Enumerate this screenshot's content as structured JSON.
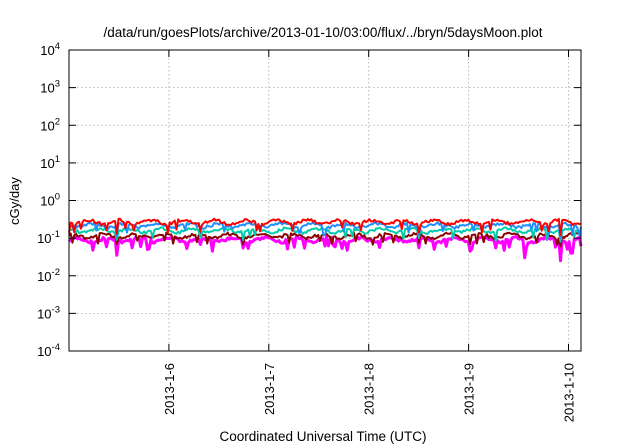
{
  "chart_data": {
    "type": "line",
    "title": "/data/run/goesPlots/archive/2013-01-10/03:00/flux/../bryn/5daysMoon.plot",
    "xlabel": "Coordinated Universal Time (UTC)",
    "ylabel": "cGy/day",
    "y_scale": "log",
    "ylim": [
      0.0001,
      10000
    ],
    "xlim": [
      "2013-01-05 00:00",
      "2013-01-10 03:00"
    ],
    "y_ticks": [
      {
        "base": "10",
        "exp": "-4",
        "value": 0.0001
      },
      {
        "base": "10",
        "exp": "-3",
        "value": 0.001
      },
      {
        "base": "10",
        "exp": "-2",
        "value": 0.01
      },
      {
        "base": "10",
        "exp": "-1",
        "value": 0.1
      },
      {
        "base": "10",
        "exp": "0",
        "value": 1
      },
      {
        "base": "10",
        "exp": "1",
        "value": 10
      },
      {
        "base": "10",
        "exp": "2",
        "value": 100
      },
      {
        "base": "10",
        "exp": "3",
        "value": 1000
      },
      {
        "base": "10",
        "exp": "4",
        "value": 10000
      }
    ],
    "x_ticks": [
      {
        "label": "2013-1-6",
        "value": "2013-01-06 00:00"
      },
      {
        "label": "2013-1-7",
        "value": "2013-01-07 00:00"
      },
      {
        "label": "2013-1-8",
        "value": "2013-01-08 00:00"
      },
      {
        "label": "2013-1-9",
        "value": "2013-01-09 00:00"
      },
      {
        "label": "2013-1-10",
        "value": "2013-01-10 00:00"
      }
    ],
    "grid": true,
    "series": [
      {
        "color": "#ff00ff",
        "base": 0.09,
        "dips": [
          [
            0.48,
            0.035
          ],
          [
            0.79,
            0.05
          ],
          [
            1.43,
            0.045
          ],
          [
            3.5,
            0.055
          ],
          [
            4.56,
            0.03
          ],
          [
            4.92,
            0.025
          ],
          [
            5.03,
            0.04
          ]
        ]
      },
      {
        "color": "#8b0000",
        "base": 0.115,
        "dips": [
          [
            0.48,
            0.07
          ],
          [
            3.5,
            0.075
          ],
          [
            4.92,
            0.06
          ]
        ]
      },
      {
        "color": "#00ccaa",
        "base": 0.16,
        "dips": [
          [
            0.48,
            0.09
          ],
          [
            3.5,
            0.1
          ],
          [
            4.92,
            0.08
          ]
        ]
      },
      {
        "color": "#1e90ff",
        "base": 0.22,
        "dips": [
          [
            0.48,
            0.11
          ],
          [
            3.5,
            0.12
          ],
          [
            4.92,
            0.1
          ]
        ]
      },
      {
        "color": "#ff0000",
        "base": 0.27,
        "dips": [
          [
            0.48,
            0.13
          ],
          [
            3.5,
            0.14
          ],
          [
            4.92,
            0.12
          ]
        ]
      }
    ]
  }
}
